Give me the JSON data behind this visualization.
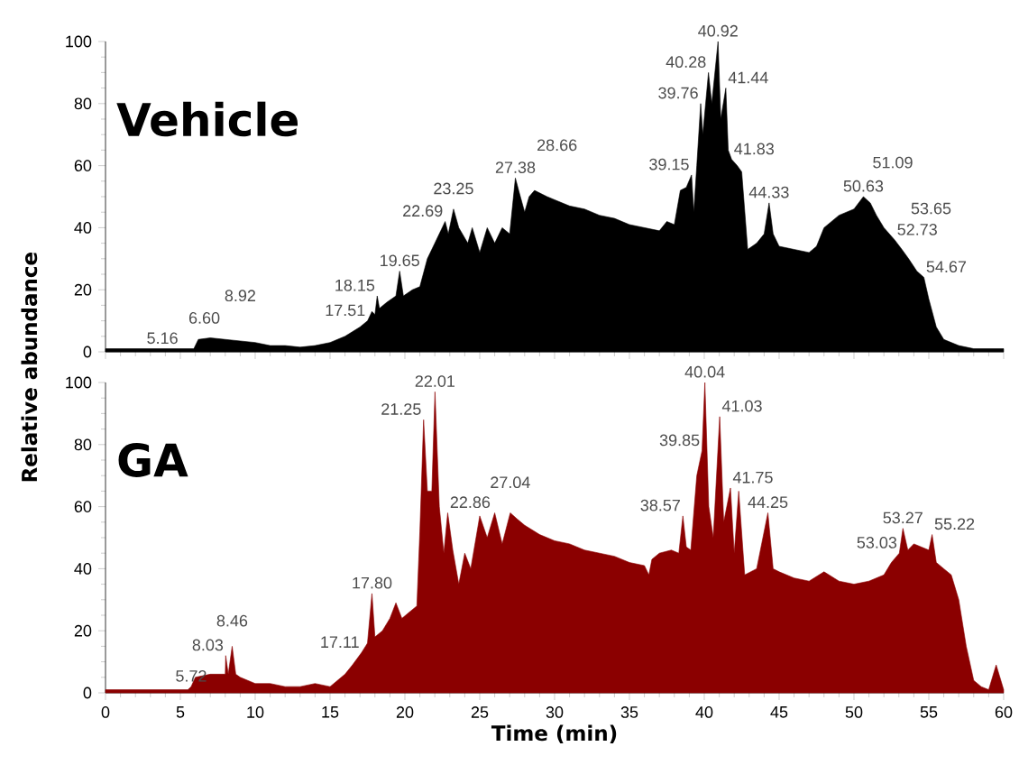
{
  "chart_data": [
    {
      "type": "area",
      "title": "Vehicle",
      "ylabel": "Relative abundance",
      "xlim": [
        0,
        60
      ],
      "ylim": [
        0,
        100
      ],
      "xticks": [
        0,
        5,
        10,
        15,
        20,
        25,
        30,
        35,
        40,
        45,
        50,
        55,
        60
      ],
      "yticks": [
        0,
        20,
        40,
        60,
        80,
        100
      ],
      "tick_labels": "y",
      "series": [
        {
          "color": "#000000",
          "x": [
            0,
            5,
            5.9,
            6.2,
            7,
            8,
            9,
            10,
            11,
            12,
            13,
            14,
            15,
            16,
            17,
            17.51,
            17.8,
            18.0,
            18.15,
            18.3,
            18.8,
            19.4,
            19.65,
            19.9,
            20.5,
            21,
            21.5,
            22,
            22.69,
            22.9,
            23.25,
            23.6,
            24.2,
            24.5,
            25,
            25.5,
            26,
            26.5,
            27,
            27.38,
            27.6,
            28,
            28.3,
            28.66,
            29.5,
            30,
            31,
            32,
            33,
            34,
            35,
            36,
            37,
            37.5,
            38,
            38.4,
            38.8,
            39.15,
            39.3,
            39.5,
            39.76,
            39.9,
            40.28,
            40.5,
            40.92,
            41.1,
            41.44,
            41.6,
            41.83,
            42.2,
            42.5,
            42.9,
            43.5,
            44.0,
            44.33,
            44.6,
            45,
            46,
            47,
            47.5,
            48,
            49,
            50,
            50.63,
            51.09,
            51.5,
            52,
            52.73,
            53.2,
            53.65,
            54.2,
            54.67,
            55,
            55.5,
            56,
            57,
            58,
            60
          ],
          "values": [
            1,
            1,
            1,
            4,
            4.5,
            4,
            3.5,
            3,
            2,
            2,
            1.5,
            2,
            3,
            5,
            8,
            10,
            13,
            12,
            18,
            14,
            16,
            18,
            26,
            18,
            20,
            21,
            30,
            35,
            42,
            38,
            46,
            40,
            35,
            40,
            32,
            40,
            35,
            40,
            38,
            56,
            52,
            45,
            50,
            52,
            50,
            49,
            47,
            46,
            44,
            43,
            41,
            40,
            39,
            42,
            41,
            52,
            53,
            57,
            45,
            60,
            80,
            70,
            90,
            80,
            100,
            75,
            85,
            65,
            62,
            60,
            58,
            33,
            35,
            38,
            48,
            38,
            34,
            33,
            32,
            34,
            40,
            44,
            46,
            50,
            48,
            44,
            40,
            36,
            33,
            30,
            26,
            24,
            17,
            8,
            4,
            2,
            1,
            1
          ]
        }
      ],
      "annotations": [
        {
          "text": "5.16",
          "x": 5,
          "y": 1
        },
        {
          "text": "6.60",
          "x": 6.6,
          "y": 4.3
        },
        {
          "text": "8.92",
          "x": 9,
          "y": 3.5
        },
        {
          "text": "17.51",
          "x": 17.51,
          "y": 10
        },
        {
          "text": "18.15",
          "x": 18.15,
          "y": 18
        },
        {
          "text": "19.65",
          "x": 19.65,
          "y": 26
        },
        {
          "text": "22.69",
          "x": 22.69,
          "y": 42
        },
        {
          "text": "23.25",
          "x": 23.25,
          "y": 46
        },
        {
          "text": "27.38",
          "x": 27.38,
          "y": 56
        },
        {
          "text": "28.66",
          "x": 28.66,
          "y": 52
        },
        {
          "text": "39.15",
          "x": 39.15,
          "y": 57
        },
        {
          "text": "39.76",
          "x": 39.76,
          "y": 80
        },
        {
          "text": "40.28",
          "x": 40.28,
          "y": 90
        },
        {
          "text": "40.92",
          "x": 40.92,
          "y": 100
        },
        {
          "text": "41.44",
          "x": 41.44,
          "y": 85
        },
        {
          "text": "41.83",
          "x": 41.83,
          "y": 62
        },
        {
          "text": "44.33",
          "x": 44.33,
          "y": 48
        },
        {
          "text": "50.63",
          "x": 50.63,
          "y": 50
        },
        {
          "text": "51.09",
          "x": 51.09,
          "y": 48
        },
        {
          "text": "52.73",
          "x": 52.73,
          "y": 36
        },
        {
          "text": "53.65",
          "x": 53.65,
          "y": 30
        },
        {
          "text": "54.67",
          "x": 54.67,
          "y": 24
        }
      ]
    },
    {
      "type": "area",
      "title": "GA",
      "xlabel": "Time (min)",
      "xlim": [
        0,
        60
      ],
      "ylim": [
        0,
        100
      ],
      "xticks": [
        0,
        5,
        10,
        15,
        20,
        25,
        30,
        35,
        40,
        45,
        50,
        55,
        60
      ],
      "yticks": [
        0,
        20,
        40,
        60,
        80,
        100
      ],
      "series": [
        {
          "color": "#8b0000",
          "x": [
            0,
            5.5,
            5.72,
            6,
            7,
            8,
            8.03,
            8.2,
            8.46,
            8.7,
            9,
            10,
            11,
            12,
            13,
            14,
            15,
            16,
            16.5,
            17.11,
            17.5,
            17.8,
            18.0,
            18.5,
            19,
            19.4,
            19.8,
            20.3,
            20.8,
            21.0,
            21.25,
            21.5,
            21.8,
            22.01,
            22.3,
            22.6,
            22.86,
            23.2,
            23.6,
            24,
            24.4,
            25,
            25.5,
            26,
            26.5,
            27.04,
            27.5,
            28,
            29,
            30,
            31,
            32,
            33,
            34,
            35,
            36,
            36.3,
            36.5,
            37,
            37.8,
            38.3,
            38.57,
            38.8,
            39.1,
            39.5,
            39.85,
            40.04,
            40.3,
            40.6,
            41.03,
            41.3,
            41.75,
            42,
            42.3,
            42.7,
            43.5,
            44.25,
            44.6,
            45,
            46,
            47,
            48,
            49,
            50,
            51,
            52,
            52.5,
            53.03,
            53.27,
            53.6,
            54,
            55,
            55.22,
            55.5,
            56,
            56.5,
            57,
            57.5,
            58,
            58.5,
            59,
            59.5,
            60
          ],
          "values": [
            1,
            1,
            2,
            5,
            6,
            6,
            12,
            6,
            15,
            6,
            5,
            3,
            3,
            2,
            2,
            3,
            2,
            6,
            9,
            13,
            16,
            32,
            18,
            20,
            24,
            29,
            24,
            26,
            28,
            52,
            88,
            65,
            65,
            97,
            60,
            45,
            58,
            46,
            35,
            45,
            40,
            57,
            50,
            58,
            48,
            58,
            56,
            54,
            51,
            49,
            48,
            46,
            45,
            44,
            42,
            41,
            38,
            43,
            45,
            46,
            45,
            57,
            47,
            46,
            70,
            78,
            100,
            60,
            50,
            89,
            55,
            66,
            45,
            65,
            38,
            40,
            58,
            40,
            39,
            37,
            36,
            39,
            36,
            35,
            36,
            38,
            42,
            45,
            53,
            46,
            48,
            46,
            51,
            42,
            40,
            38,
            30,
            15,
            4,
            2,
            1,
            9,
            1
          ]
        }
      ],
      "annotations": [
        {
          "text": "5.72",
          "x": 5.72,
          "y": 2
        },
        {
          "text": "8.03",
          "x": 8.03,
          "y": 12
        },
        {
          "text": "8.46",
          "x": 8.46,
          "y": 15
        },
        {
          "text": "17.11",
          "x": 17.11,
          "y": 13
        },
        {
          "text": "17.80",
          "x": 17.8,
          "y": 32
        },
        {
          "text": "21.25",
          "x": 21.25,
          "y": 88
        },
        {
          "text": "22.01",
          "x": 22.01,
          "y": 97
        },
        {
          "text": "22.86",
          "x": 22.86,
          "y": 58
        },
        {
          "text": "27.04",
          "x": 27.04,
          "y": 58
        },
        {
          "text": "38.57",
          "x": 38.57,
          "y": 57
        },
        {
          "text": "39.85",
          "x": 39.85,
          "y": 78
        },
        {
          "text": "40.04",
          "x": 40.04,
          "y": 100
        },
        {
          "text": "41.03",
          "x": 41.03,
          "y": 89
        },
        {
          "text": "41.75",
          "x": 41.75,
          "y": 66
        },
        {
          "text": "44.25",
          "x": 44.25,
          "y": 58
        },
        {
          "text": "53.03",
          "x": 53.03,
          "y": 45
        },
        {
          "text": "53.27",
          "x": 53.27,
          "y": 53
        },
        {
          "text": "55.22",
          "x": 55.22,
          "y": 51
        }
      ]
    }
  ]
}
